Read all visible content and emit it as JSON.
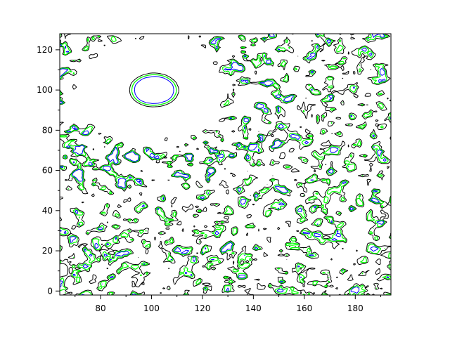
{
  "chart_data": {
    "type": "contour",
    "title": "",
    "xlabel": "",
    "ylabel": "",
    "xlim": [
      64,
      194
    ],
    "ylim": [
      -2,
      128
    ],
    "x_ticks": [
      "80",
      "100",
      "120",
      "140",
      "160",
      "180"
    ],
    "x_tick_values": [
      80,
      100,
      120,
      140,
      160,
      180
    ],
    "y_ticks": [
      "0",
      "20",
      "40",
      "60",
      "80",
      "100",
      "120"
    ],
    "y_tick_values": [
      0,
      20,
      40,
      60,
      80,
      100,
      120
    ],
    "grid": false,
    "levels": [
      {
        "color": "#000000"
      },
      {
        "color": "#00ff00"
      },
      {
        "color": "#0000ff"
      }
    ],
    "features": {
      "blank_region_center": [
        100,
        100
      ],
      "closed_contour_center": [
        101,
        100
      ]
    }
  }
}
